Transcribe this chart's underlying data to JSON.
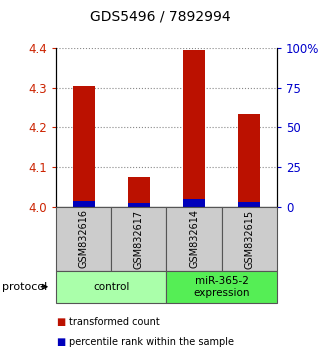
{
  "title": "GDS5496 / 7892994",
  "samples": [
    "GSM832616",
    "GSM832617",
    "GSM832614",
    "GSM832615"
  ],
  "red_values": [
    4.305,
    4.075,
    4.395,
    4.235
  ],
  "blue_values": [
    4.015,
    4.01,
    4.02,
    4.012
  ],
  "ymin": 4.0,
  "ymax": 4.4,
  "yticks_left": [
    4.0,
    4.1,
    4.2,
    4.3,
    4.4
  ],
  "yticks_right": [
    0,
    25,
    50,
    75,
    100
  ],
  "groups": [
    {
      "label": "control",
      "color": "#aaffaa"
    },
    {
      "label": "miR-365-2\nexpression",
      "color": "#55ee55"
    }
  ],
  "bar_width": 0.4,
  "red_color": "#bb1100",
  "blue_color": "#0000bb",
  "grid_color": "#888888",
  "title_fontsize": 10,
  "left_tick_color": "#cc2200",
  "right_tick_color": "#0000cc",
  "protocol_label": "protocol",
  "legend_red": "transformed count",
  "legend_blue": "percentile rank within the sample",
  "sample_box_color": "#cccccc",
  "box_border_color": "#555555",
  "bg_color": "#ffffff"
}
